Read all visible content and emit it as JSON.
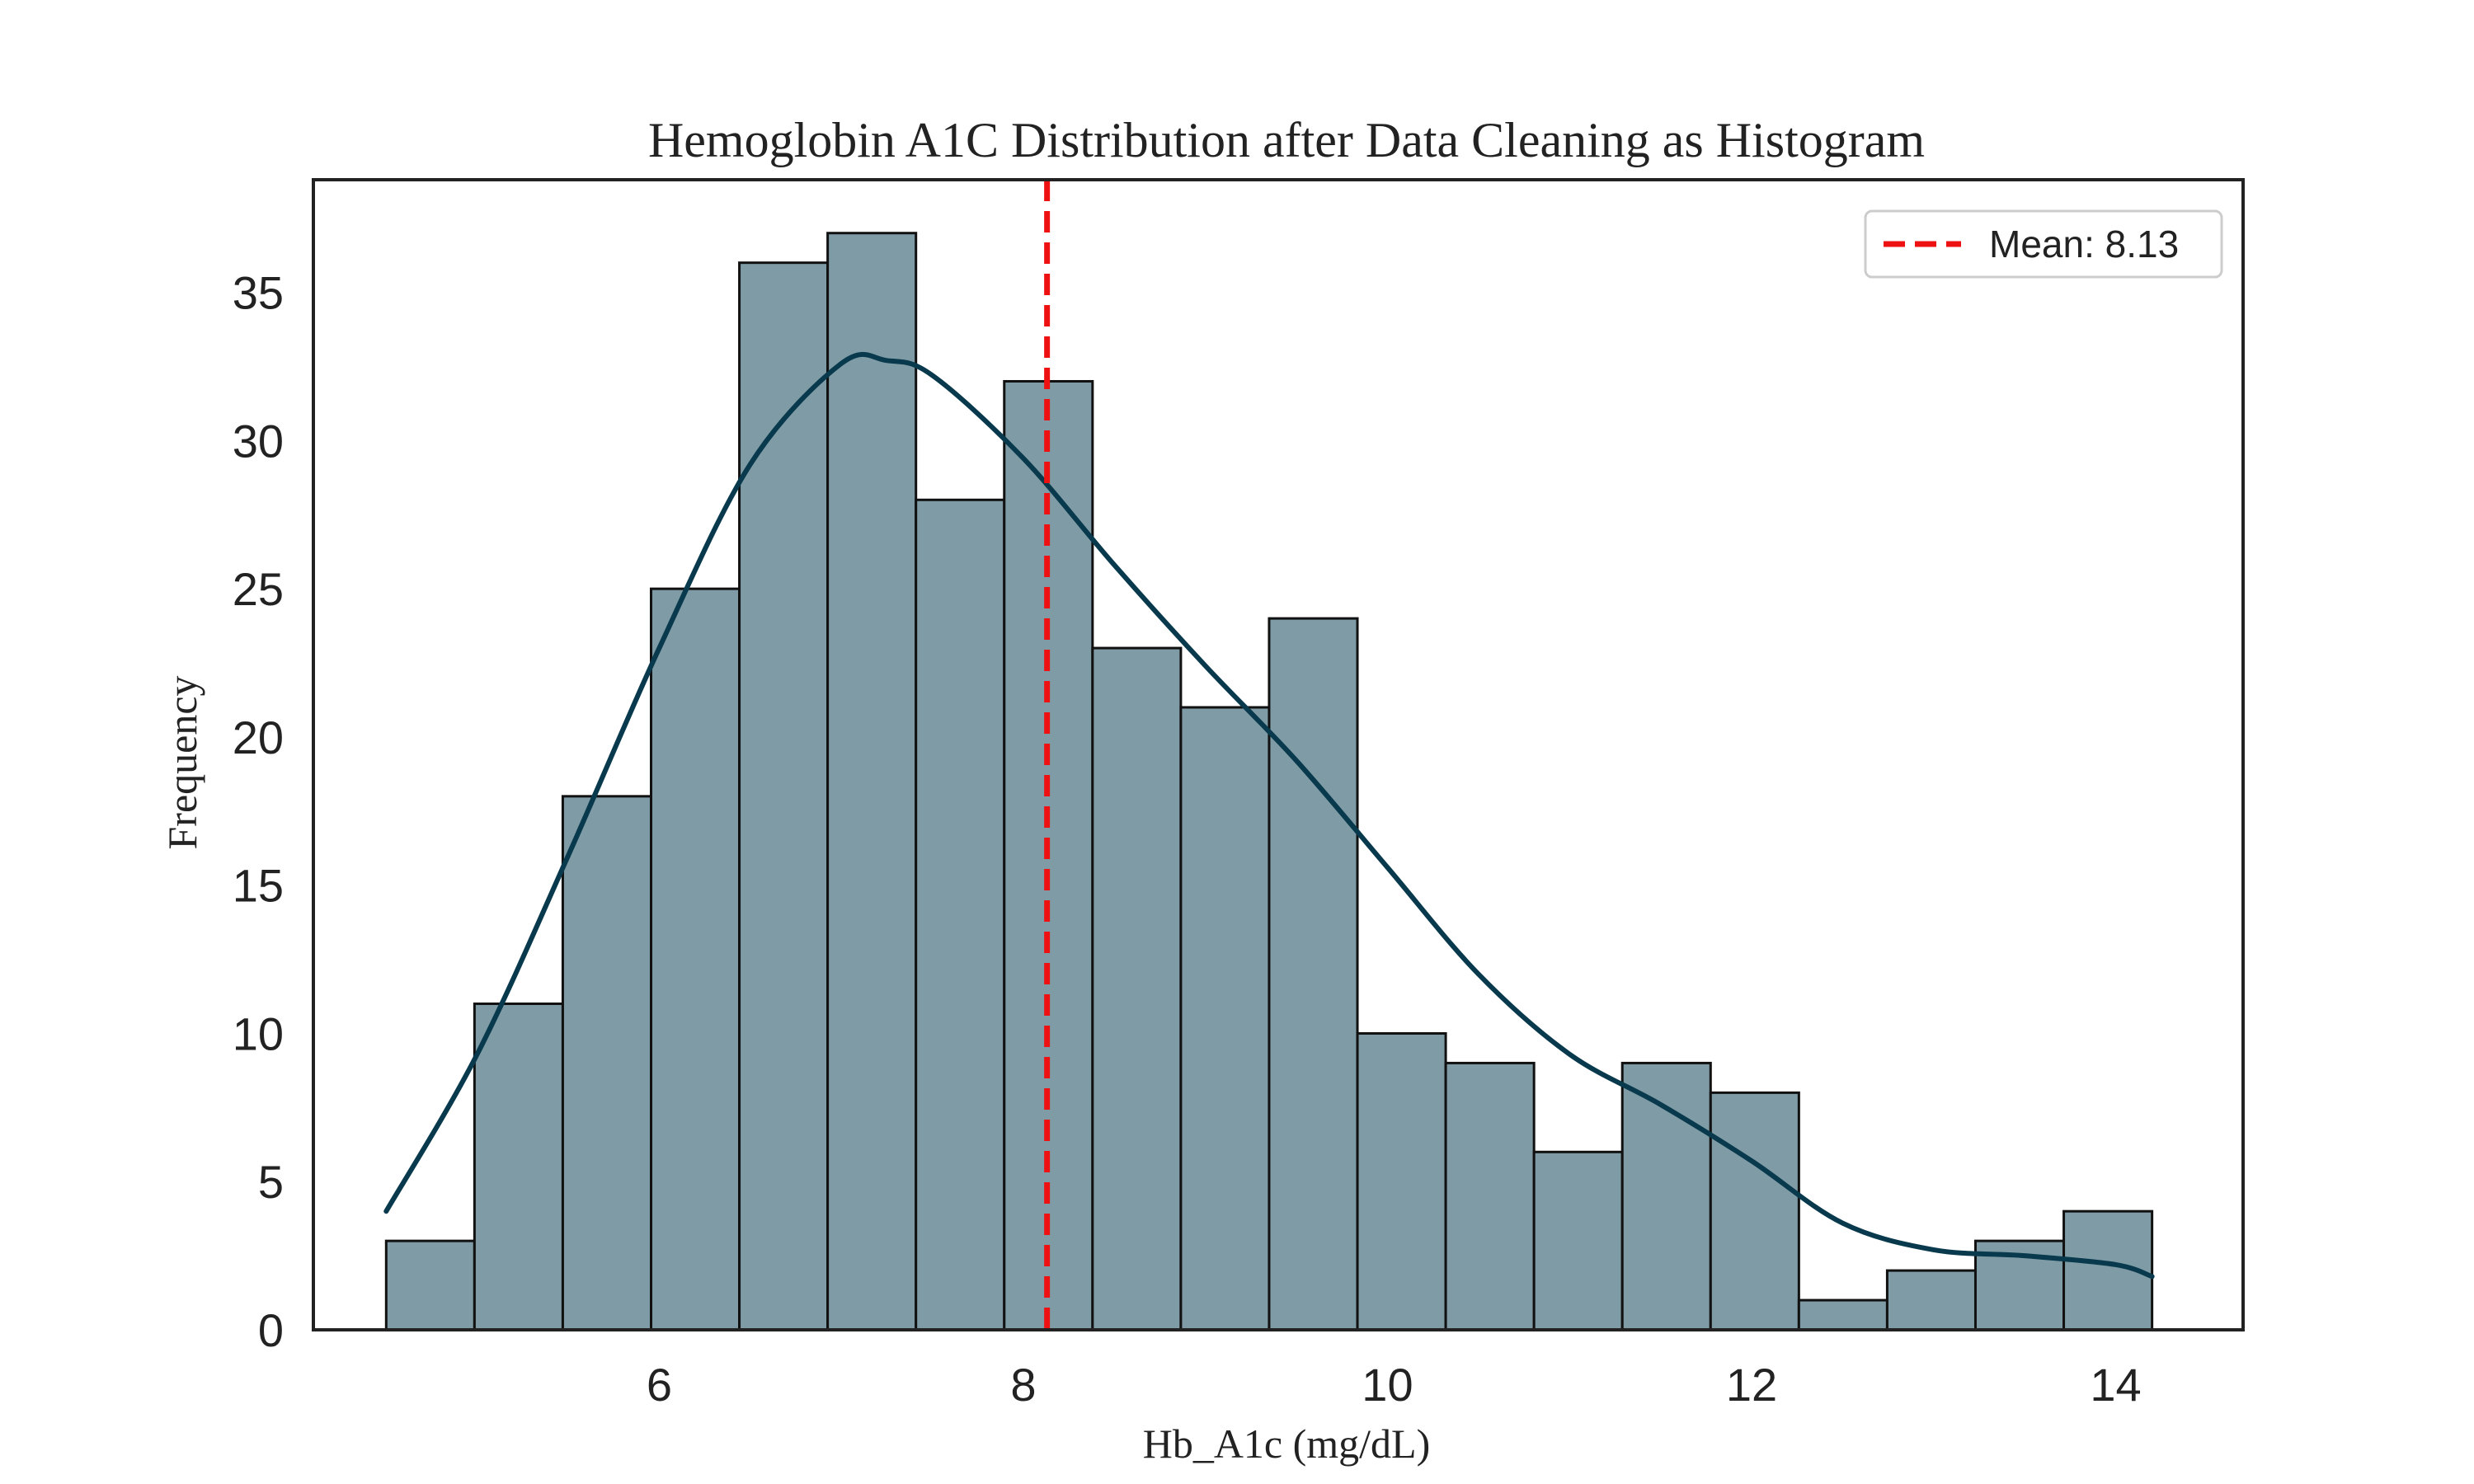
{
  "chart_data": {
    "type": "bar",
    "title": "Hemoglobin A1C Distribution after Data Cleaning as Histogram",
    "xlabel": "Hb_A1c (mg/dL)",
    "ylabel": "Frequency",
    "bin_start": 4.5,
    "bin_width": 0.485,
    "values": [
      3,
      11,
      18,
      25,
      36,
      37,
      28,
      32,
      23,
      21,
      24,
      10,
      9,
      6,
      9,
      8,
      1,
      2,
      3,
      4
    ],
    "xlim": [
      4.1,
      14.7
    ],
    "ylim": [
      0,
      38.8
    ],
    "xticks": [
      6,
      8,
      10,
      12,
      14
    ],
    "yticks": [
      0,
      5,
      10,
      15,
      20,
      25,
      30,
      35
    ],
    "kde": {
      "x": [
        4.5,
        5.0,
        5.5,
        6.0,
        6.5,
        7.0,
        7.25,
        7.5,
        8.0,
        8.5,
        9.0,
        9.5,
        10.0,
        10.5,
        11.0,
        11.5,
        12.0,
        12.5,
        13.0,
        13.5,
        14.0,
        14.2
      ],
      "y": [
        4.0,
        9.3,
        16.0,
        23.0,
        29.2,
        32.6,
        32.7,
        32.2,
        29.4,
        25.8,
        22.4,
        19.2,
        15.6,
        12.0,
        9.3,
        7.6,
        5.7,
        3.6,
        2.7,
        2.5,
        2.2,
        1.8
      ]
    },
    "mean_line": {
      "value": 8.13,
      "label": "Mean: 8.13",
      "color": "#ee1111"
    },
    "bar_color": "#7f9ca6",
    "bar_edge_color": "#111111",
    "kde_color": "#08394d",
    "grid": false,
    "legend_position": "top-right"
  }
}
